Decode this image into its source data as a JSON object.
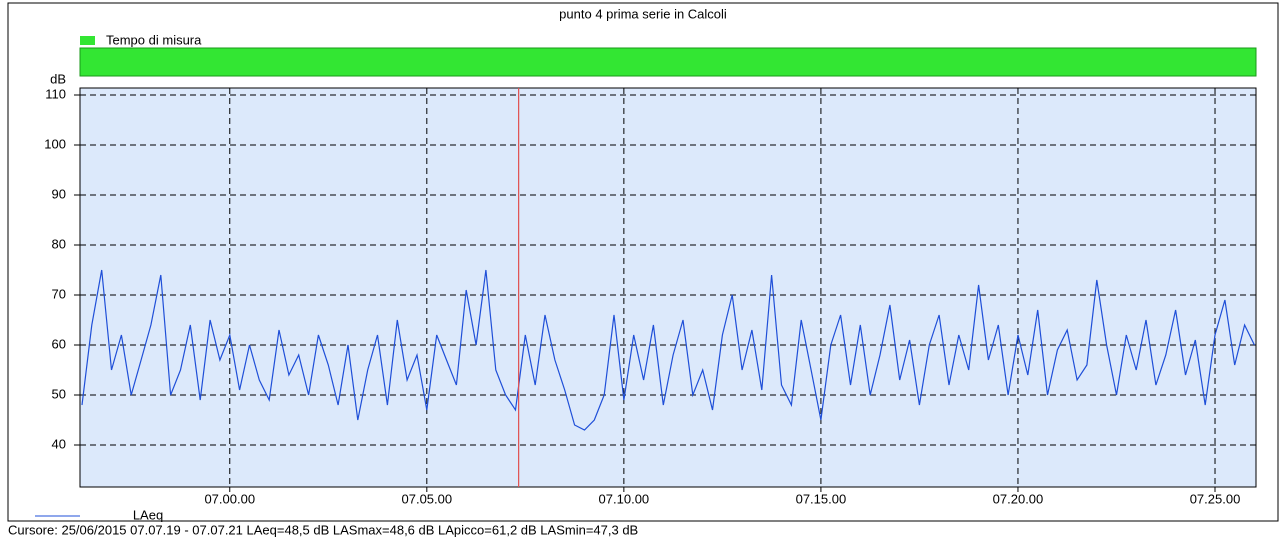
{
  "chart_data": {
    "type": "line",
    "title": "punto 4 prima serie in Calcoli",
    "measure_bar": {
      "name": "Tempo di misura",
      "color": "#33e633"
    },
    "y_label": "dB",
    "x": [
      416.25,
      416.5,
      416.75,
      417,
      417.25,
      417.5,
      417.75,
      418,
      418.25,
      418.5,
      418.75,
      419,
      419.25,
      419.5,
      419.75,
      420,
      420.25,
      420.5,
      420.75,
      421,
      421.25,
      421.5,
      421.75,
      422,
      422.25,
      422.5,
      422.75,
      423,
      423.25,
      423.5,
      423.75,
      424,
      424.25,
      424.5,
      424.75,
      425,
      425.25,
      425.5,
      425.75,
      426,
      426.25,
      426.5,
      426.75,
      427,
      427.25,
      427.5,
      427.75,
      428,
      428.25,
      428.5,
      428.75,
      429,
      429.25,
      429.5,
      429.75,
      430,
      430.25,
      430.5,
      430.75,
      431,
      431.25,
      431.5,
      431.75,
      432,
      432.25,
      432.5,
      432.75,
      433,
      433.25,
      433.5,
      433.75,
      434,
      434.25,
      434.5,
      434.75,
      435,
      435.25,
      435.5,
      435.75,
      436,
      436.25,
      436.5,
      436.75,
      437,
      437.25,
      437.5,
      437.75,
      438,
      438.25,
      438.5,
      438.75,
      439,
      439.25,
      439.5,
      439.75,
      440,
      440.25,
      440.5,
      440.75,
      441,
      441.25,
      441.5,
      441.75,
      442,
      442.25,
      442.5,
      442.75,
      443,
      443.25,
      443.5,
      443.75,
      444,
      444.25,
      444.5,
      444.75,
      445,
      445.25,
      445.5,
      445.75,
      446
    ],
    "series": [
      {
        "name": "LAeq",
        "color": "#1f4fd8",
        "values": [
          48,
          64,
          75,
          55,
          62,
          50,
          57,
          64,
          74,
          50,
          55,
          64,
          49,
          65,
          57,
          62,
          51,
          60,
          53,
          49,
          63,
          54,
          58,
          50,
          62,
          56,
          48,
          60,
          45,
          55,
          62,
          48,
          65,
          53,
          58,
          47,
          62,
          57,
          52,
          71,
          60,
          75,
          55,
          50,
          47,
          62,
          52,
          66,
          57,
          51,
          44,
          43,
          45,
          50,
          66,
          49,
          62,
          53,
          64,
          48,
          58,
          65,
          50,
          55,
          47,
          62,
          70,
          55,
          63,
          51,
          74,
          52,
          48,
          65,
          55,
          45,
          60,
          66,
          52,
          64,
          50,
          58,
          68,
          53,
          61,
          48,
          60,
          66,
          52,
          62,
          55,
          72,
          57,
          64,
          50,
          62,
          54,
          67,
          50,
          59,
          63,
          53,
          56,
          73,
          60,
          50,
          62,
          55,
          65,
          52,
          58,
          67,
          54,
          61,
          48,
          62,
          69,
          56,
          64,
          60
        ]
      }
    ],
    "cursor_x": 427.33,
    "cursor_color": "#e05050",
    "xlim": [
      416.2,
      446.04
    ],
    "xticks": [
      {
        "value": 420,
        "label": "07.00.00"
      },
      {
        "value": 425,
        "label": "07.05.00"
      },
      {
        "value": 430,
        "label": "07.10.00"
      },
      {
        "value": 435,
        "label": "07.15.00"
      },
      {
        "value": 440,
        "label": "07.20.00"
      },
      {
        "value": 445,
        "label": "07.25.00"
      }
    ],
    "ylim": [
      31.6,
      111.4
    ],
    "yticks": [
      40,
      50,
      60,
      70,
      80,
      90,
      100,
      110
    ],
    "grid": true,
    "footer": "Cursore: 25/06/2015 07.07.19 - 07.07.21  LAeq=48,5 dB  LASmax=48,6 dB  LApicco=61,2 dB  LASmin=47,3 dB"
  }
}
